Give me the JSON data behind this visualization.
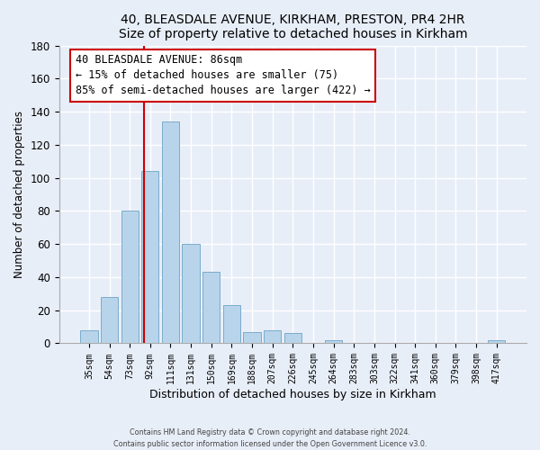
{
  "title1": "40, BLEASDALE AVENUE, KIRKHAM, PRESTON, PR4 2HR",
  "title2": "Size of property relative to detached houses in Kirkham",
  "xlabel": "Distribution of detached houses by size in Kirkham",
  "ylabel": "Number of detached properties",
  "bar_labels": [
    "35sqm",
    "54sqm",
    "73sqm",
    "92sqm",
    "111sqm",
    "131sqm",
    "150sqm",
    "169sqm",
    "188sqm",
    "207sqm",
    "226sqm",
    "245sqm",
    "264sqm",
    "283sqm",
    "303sqm",
    "322sqm",
    "341sqm",
    "360sqm",
    "379sqm",
    "398sqm",
    "417sqm"
  ],
  "bar_values": [
    8,
    28,
    80,
    104,
    134,
    60,
    43,
    23,
    7,
    8,
    6,
    0,
    2,
    0,
    0,
    0,
    0,
    0,
    0,
    0,
    2
  ],
  "bar_color": "#b8d4ea",
  "bar_edge_color": "#7aaccc",
  "ylim": [
    0,
    180
  ],
  "yticks": [
    0,
    20,
    40,
    60,
    80,
    100,
    120,
    140,
    160,
    180
  ],
  "vline_x_index": 2.72,
  "annotation_title": "40 BLEASDALE AVENUE: 86sqm",
  "annotation_line1": "← 15% of detached houses are smaller (75)",
  "annotation_line2": "85% of semi-detached houses are larger (422) →",
  "footer1": "Contains HM Land Registry data © Crown copyright and database right 2024.",
  "footer2": "Contains public sector information licensed under the Open Government Licence v3.0.",
  "background_color": "#e8eef8",
  "grid_color": "#ffffff"
}
